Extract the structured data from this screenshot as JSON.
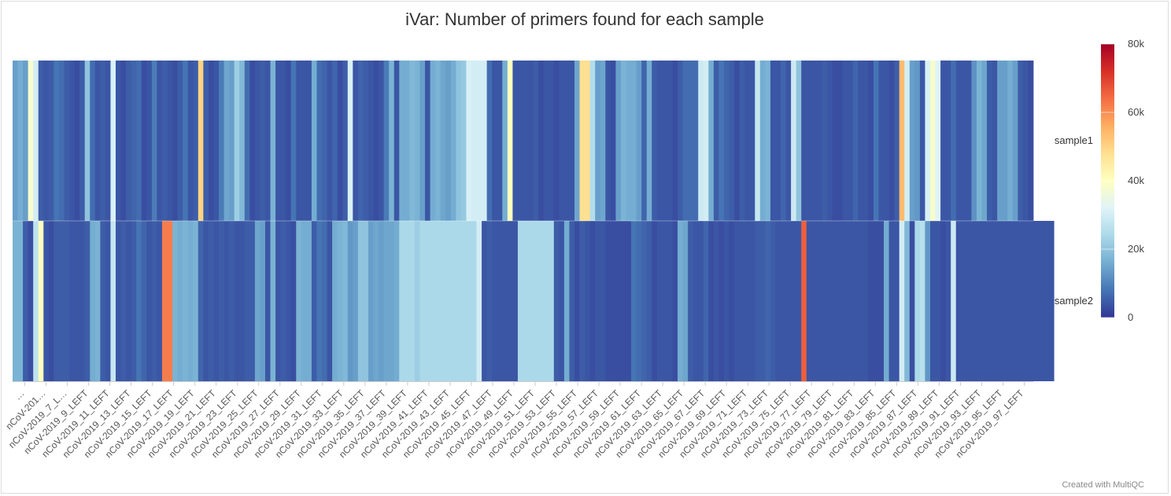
{
  "chart_data": {
    "type": "heatmap",
    "title": "iVar: Number of primers found for each sample",
    "rows": [
      "sample1",
      "sample2"
    ],
    "columns_label_prefix": "nCoV-2019_",
    "x_tick_labels": [
      "…",
      "nCoV-201…",
      "nCoV-2019_7_L…",
      "nCoV-2019_9_LEFT",
      "nCoV-2019_11_LEFT",
      "nCoV-2019_13_LEFT",
      "nCoV-2019_15_LEFT",
      "nCoV-2019_17_LEFT",
      "nCoV-2019_19_LEFT",
      "nCoV-2019_21_LEFT",
      "nCoV-2019_23_LEFT",
      "nCoV-2019_25_LEFT",
      "nCoV-2019_27_LEFT",
      "nCoV-2019_29_LEFT",
      "nCoV-2019_31_LEFT",
      "nCoV-2019_33_LEFT",
      "nCoV-2019_35_LEFT",
      "nCoV-2019_37_LEFT",
      "nCoV-2019_39_LEFT",
      "nCoV-2019_41_LEFT",
      "nCoV-2019_43_LEFT",
      "nCoV-2019_45_LEFT",
      "nCoV-2019_47_LEFT",
      "nCoV-2019_49_LEFT",
      "nCoV-2019_51_LEFT",
      "nCoV-2019_53_LEFT",
      "nCoV-2019_55_LEFT",
      "nCoV-2019_57_LEFT",
      "nCoV-2019_59_LEFT",
      "nCoV-2019_61_LEFT",
      "nCoV-2019_63_LEFT",
      "nCoV-2019_65_LEFT",
      "nCoV-2019_67_LEFT",
      "nCoV-2019_69_LEFT",
      "nCoV-2019_71_LEFT",
      "nCoV-2019_73_LEFT",
      "nCoV-2019_75_LEFT",
      "nCoV-2019_77_LEFT",
      "nCoV-2019_79_LEFT",
      "nCoV-2019_81_LEFT",
      "nCoV-2019_83_LEFT",
      "nCoV-2019_85_LEFT",
      "nCoV-2019_87_LEFT",
      "nCoV-2019_89_LEFT",
      "nCoV-2019_91_LEFT",
      "nCoV-2019_93_LEFT",
      "nCoV-2019_95_LEFT",
      "nCoV-2019_97_LEFT"
    ],
    "values": [
      [
        14000,
        16000,
        14000,
        38000,
        30000,
        5000,
        4000,
        5000,
        8000,
        7000,
        5000,
        4000,
        3000,
        5000,
        20000,
        7000,
        4000,
        5000,
        4000,
        31000,
        4000,
        3000,
        5000,
        6000,
        7000,
        3000,
        4000,
        9000,
        4000,
        5000,
        4000,
        3000,
        5000,
        8000,
        4000,
        5000,
        50000,
        5000,
        3000,
        4000,
        9000,
        15000,
        14000,
        22000,
        18000,
        7000,
        3000,
        4000,
        5000,
        4000,
        17000,
        4000,
        4000,
        3000,
        8000,
        4000,
        4000,
        4000,
        16000,
        7000,
        6000,
        4000,
        6000,
        3000,
        5000,
        31000,
        4000,
        6000,
        5000,
        4000,
        3000,
        4000,
        9000,
        17000,
        4000,
        16000,
        16000,
        18000,
        17000,
        14000,
        4000,
        16000,
        17000,
        15000,
        14000,
        16000,
        20000,
        21000,
        31000,
        30000,
        30000,
        30000,
        7000,
        4000,
        4000,
        16000,
        40000,
        4000,
        4000,
        4000,
        4000,
        5000,
        3000,
        4000,
        4000,
        3000,
        4000,
        4000,
        4000,
        15000,
        48000,
        48000,
        25000,
        14000,
        15000,
        4000,
        3000,
        14000,
        17000,
        16000,
        16000,
        14000,
        6000,
        16000,
        5000,
        4000,
        4000,
        4000,
        3000,
        5000,
        7000,
        7000,
        7000,
        29000,
        30000,
        16000,
        5000,
        8000,
        6000,
        5000,
        3000,
        5000,
        4000,
        4000,
        28000,
        16000,
        17000,
        4000,
        4000,
        6000,
        4000,
        29000,
        20000,
        4000,
        4000,
        4000,
        4000,
        5000,
        4000,
        3000,
        3000,
        4000,
        4000,
        6000,
        4000,
        4000,
        3000,
        8000,
        4000,
        4000,
        3000,
        5000,
        54000,
        30000,
        14000,
        13000,
        4000,
        31000,
        38000,
        32000,
        4000,
        4000,
        7000,
        4000,
        4000,
        4000,
        12000,
        17000,
        15000,
        5000,
        4000,
        14000,
        14000,
        16000,
        14000,
        5000,
        4000,
        3000
      ],
      [
        17000,
        17000,
        5000,
        3000,
        27000,
        40000,
        4000,
        3000,
        5000,
        5000,
        5000,
        4000,
        4000,
        4000,
        5000,
        16000,
        17000,
        5000,
        4000,
        28000,
        4000,
        5000,
        4000,
        5000,
        8000,
        6000,
        4000,
        5000,
        4000,
        62000,
        62000,
        17000,
        16000,
        17000,
        16000,
        17000,
        6000,
        4000,
        5000,
        4000,
        5000,
        4000,
        5000,
        4000,
        4000,
        5000,
        5000,
        15000,
        14000,
        4000,
        17000,
        4000,
        5000,
        4000,
        3000,
        17000,
        16000,
        16000,
        5000,
        8000,
        7000,
        4000,
        16000,
        17000,
        18000,
        13000,
        14000,
        20000,
        20000,
        14000,
        15000,
        14000,
        15000,
        15000,
        16000,
        24000,
        24000,
        24000,
        22000,
        24000,
        24000,
        24000,
        24000,
        24000,
        24000,
        24000,
        24000,
        24000,
        24000,
        24000,
        30000,
        4000,
        5000,
        4000,
        4000,
        4000,
        4000,
        4000,
        24000,
        24000,
        24000,
        24000,
        24000,
        24000,
        24000,
        5000,
        4000,
        16000,
        5000,
        3000,
        5000,
        4000,
        3000,
        4000,
        4000,
        3000,
        3000,
        3000,
        3000,
        3000,
        8000,
        7000,
        6000,
        5000,
        3000,
        4000,
        4000,
        4000,
        3000,
        16000,
        15000,
        5000,
        4000,
        4000,
        6000,
        3000,
        4000,
        3000,
        4000,
        3000,
        4000,
        4000,
        4000,
        4000,
        5000,
        5000,
        6000,
        5000,
        4000,
        4000,
        4000,
        4000,
        4000,
        66000,
        4000,
        4000,
        4000,
        4000,
        4000,
        4000,
        4000,
        4000,
        4000,
        4000,
        4000,
        4000,
        3000,
        3000,
        3000,
        16000,
        4000,
        4000,
        30000,
        18000,
        3000,
        24000,
        26000,
        13000,
        4000,
        4000,
        3000,
        4000,
        29000,
        4000,
        4000,
        4000,
        4000,
        4000,
        4000,
        4000,
        4000,
        4000,
        4000,
        4000,
        4000,
        4000,
        4000,
        4000,
        4000,
        4000,
        4000,
        4000
      ]
    ],
    "colorscale_ticks": [
      "0",
      "20k",
      "40k",
      "60k",
      "80k"
    ],
    "colorscale_range": [
      0,
      80000
    ],
    "colorscale": [
      "#313695",
      "#4575b4",
      "#74add1",
      "#abd9e9",
      "#e0f3f8",
      "#ffffbf",
      "#fee090",
      "#fdae61",
      "#f46d43",
      "#d73027",
      "#a50026"
    ]
  },
  "credit": "Created with MultiQC"
}
